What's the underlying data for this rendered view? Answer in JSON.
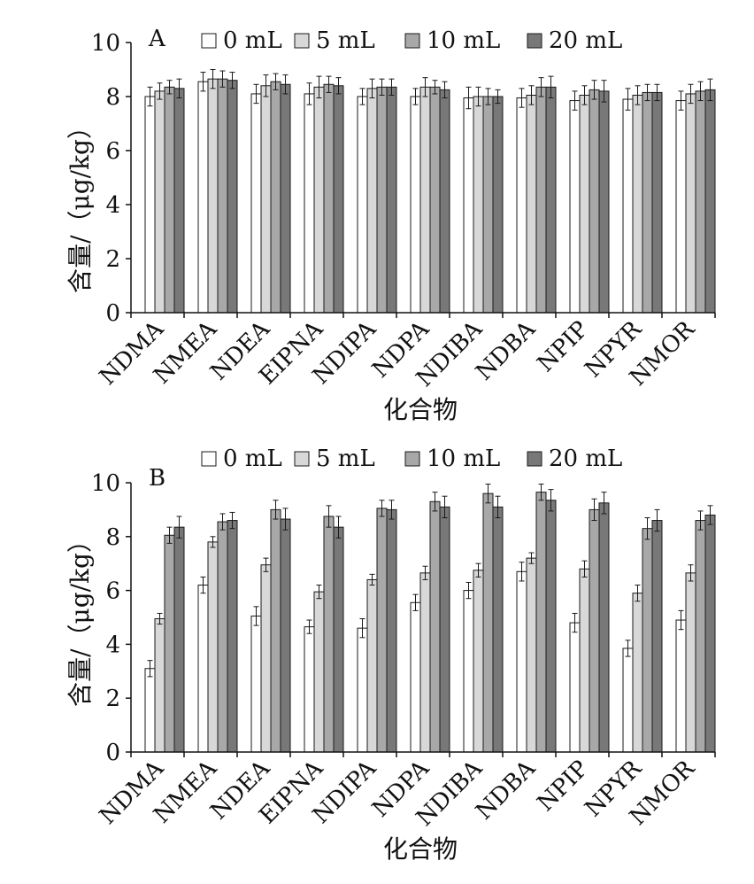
{
  "chart_data": [
    {
      "type": "bar",
      "panel_label": "A",
      "categories": [
        "NDMA",
        "NMEA",
        "NDEA",
        "EIPNA",
        "NDIPA",
        "NDPA",
        "NDIBA",
        "NDBA",
        "NPIP",
        "NPYR",
        "NMOR"
      ],
      "series": [
        {
          "name": "0 mL",
          "values": [
            8.0,
            8.55,
            8.1,
            8.1,
            8.0,
            8.0,
            7.95,
            7.95,
            7.85,
            7.9,
            7.85
          ],
          "errors": [
            0.35,
            0.35,
            0.35,
            0.4,
            0.3,
            0.3,
            0.4,
            0.35,
            0.35,
            0.4,
            0.35
          ]
        },
        {
          "name": "5 mL",
          "values": [
            8.2,
            8.65,
            8.4,
            8.35,
            8.3,
            8.35,
            8.0,
            8.05,
            8.05,
            8.05,
            8.1
          ],
          "errors": [
            0.3,
            0.35,
            0.4,
            0.4,
            0.35,
            0.35,
            0.35,
            0.35,
            0.35,
            0.35,
            0.35
          ]
        },
        {
          "name": "10 mL",
          "values": [
            8.35,
            8.65,
            8.55,
            8.45,
            8.35,
            8.35,
            8.0,
            8.35,
            8.25,
            8.15,
            8.2
          ],
          "errors": [
            0.25,
            0.3,
            0.3,
            0.3,
            0.3,
            0.25,
            0.3,
            0.35,
            0.35,
            0.3,
            0.35
          ]
        },
        {
          "name": "20 mL",
          "values": [
            8.3,
            8.6,
            8.45,
            8.4,
            8.35,
            8.25,
            8.0,
            8.35,
            8.2,
            8.15,
            8.25
          ],
          "errors": [
            0.35,
            0.3,
            0.35,
            0.3,
            0.3,
            0.3,
            0.25,
            0.4,
            0.4,
            0.3,
            0.4
          ]
        }
      ],
      "xlabel": "化合物",
      "ylabel": "含量/（μg/kg）",
      "ylim": [
        0,
        10
      ],
      "yticks": [
        "0",
        "2",
        "4",
        "6",
        "8",
        "10"
      ],
      "legend_position": "top",
      "colors": [
        "#ffffff",
        "#d8d8d8",
        "#a8a8a8",
        "#787878"
      ],
      "grid": false
    },
    {
      "type": "bar",
      "panel_label": "B",
      "categories": [
        "NDMA",
        "NMEA",
        "NDEA",
        "EIPNA",
        "NDIPA",
        "NDPA",
        "NDIBA",
        "NDBA",
        "NPIP",
        "NPYR",
        "NMOR"
      ],
      "series": [
        {
          "name": "0 mL",
          "values": [
            3.1,
            6.2,
            5.05,
            4.65,
            4.6,
            5.55,
            6.0,
            6.7,
            4.8,
            3.85,
            4.9
          ],
          "errors": [
            0.3,
            0.3,
            0.35,
            0.25,
            0.35,
            0.3,
            0.3,
            0.35,
            0.35,
            0.3,
            0.35
          ]
        },
        {
          "name": "5 mL",
          "values": [
            4.95,
            7.8,
            6.95,
            5.95,
            6.4,
            6.65,
            6.75,
            7.2,
            6.8,
            5.9,
            6.65
          ],
          "errors": [
            0.2,
            0.2,
            0.25,
            0.25,
            0.2,
            0.25,
            0.25,
            0.2,
            0.3,
            0.3,
            0.3
          ]
        },
        {
          "name": "10 mL",
          "values": [
            8.05,
            8.55,
            9.0,
            8.75,
            9.05,
            9.3,
            9.6,
            9.65,
            9.0,
            8.3,
            8.6
          ],
          "errors": [
            0.3,
            0.3,
            0.35,
            0.4,
            0.3,
            0.35,
            0.35,
            0.3,
            0.4,
            0.4,
            0.35
          ]
        },
        {
          "name": "20 mL",
          "values": [
            8.35,
            8.6,
            8.65,
            8.35,
            9.0,
            9.1,
            9.1,
            9.35,
            9.25,
            8.6,
            8.8
          ],
          "errors": [
            0.4,
            0.3,
            0.4,
            0.4,
            0.35,
            0.4,
            0.4,
            0.4,
            0.4,
            0.4,
            0.35
          ]
        }
      ],
      "xlabel": "化合物",
      "ylabel": "含量/（μg/kg）",
      "ylim": [
        0,
        10
      ],
      "yticks": [
        "0",
        "2",
        "4",
        "6",
        "8",
        "10"
      ],
      "legend_position": "top",
      "colors": [
        "#ffffff",
        "#d8d8d8",
        "#a8a8a8",
        "#787878"
      ],
      "grid": false
    }
  ]
}
